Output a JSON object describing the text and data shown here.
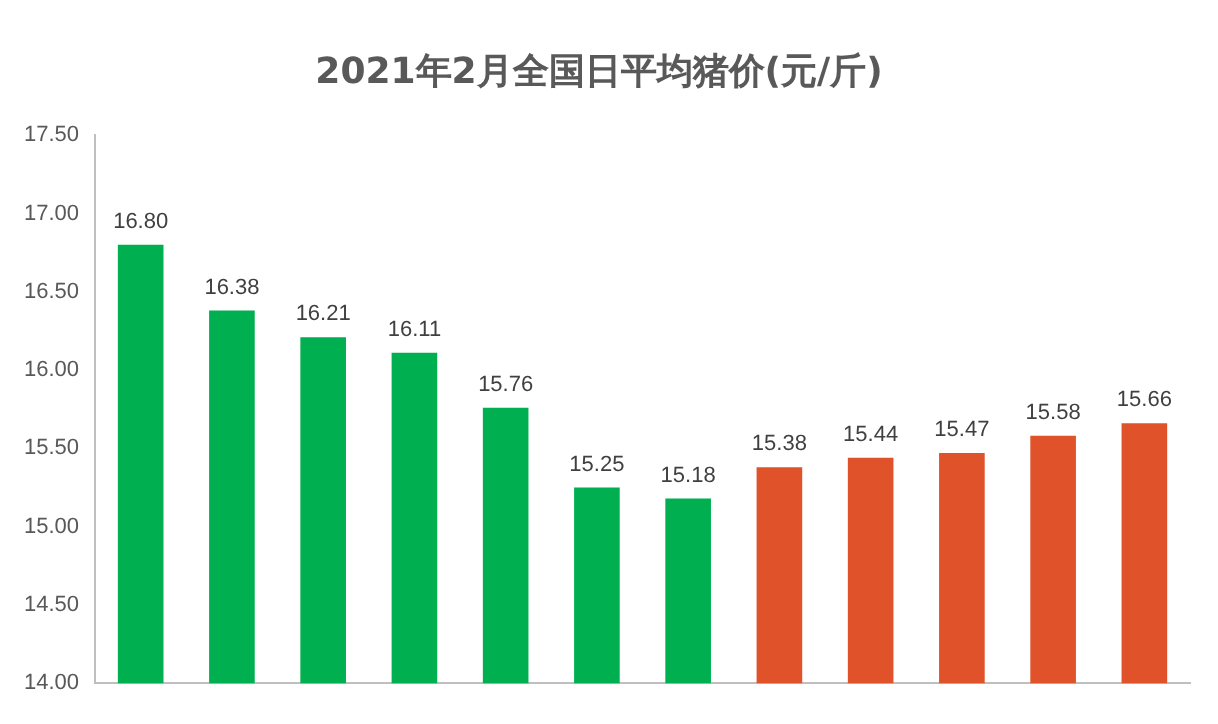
{
  "chart_data": {
    "type": "bar",
    "title": "2021年2月全国日平均猪价(元/斤)",
    "categories": [
      null,
      null,
      null,
      null,
      null,
      null,
      null,
      null,
      null,
      null,
      null,
      null
    ],
    "values": [
      16.8,
      16.38,
      16.21,
      16.11,
      15.76,
      15.25,
      15.18,
      15.38,
      15.44,
      15.47,
      15.58,
      15.66
    ],
    "value_labels": [
      "16.80",
      "16.38",
      "16.21",
      "16.11",
      "15.76",
      "15.25",
      "15.18",
      "15.38",
      "15.44",
      "15.47",
      "15.58",
      "15.66"
    ],
    "colors": [
      "#00b050",
      "#00b050",
      "#00b050",
      "#00b050",
      "#00b050",
      "#00b050",
      "#00b050",
      "#e0522a",
      "#e0522a",
      "#e0522a",
      "#e0522a",
      "#e0522a"
    ],
    "ylim": [
      14,
      17.5
    ],
    "yticks": [
      {
        "value": 14,
        "label": "14.00"
      },
      {
        "value": 14.5,
        "label": "14.50"
      },
      {
        "value": 15,
        "label": "15.00"
      },
      {
        "value": 15.5,
        "label": "15.50"
      },
      {
        "value": 16,
        "label": "16.00"
      },
      {
        "value": 16.5,
        "label": "16.50"
      },
      {
        "value": 17,
        "label": "17.00"
      },
      {
        "value": 17.5,
        "label": "17.50"
      }
    ],
    "grid": false,
    "legend": false
  }
}
